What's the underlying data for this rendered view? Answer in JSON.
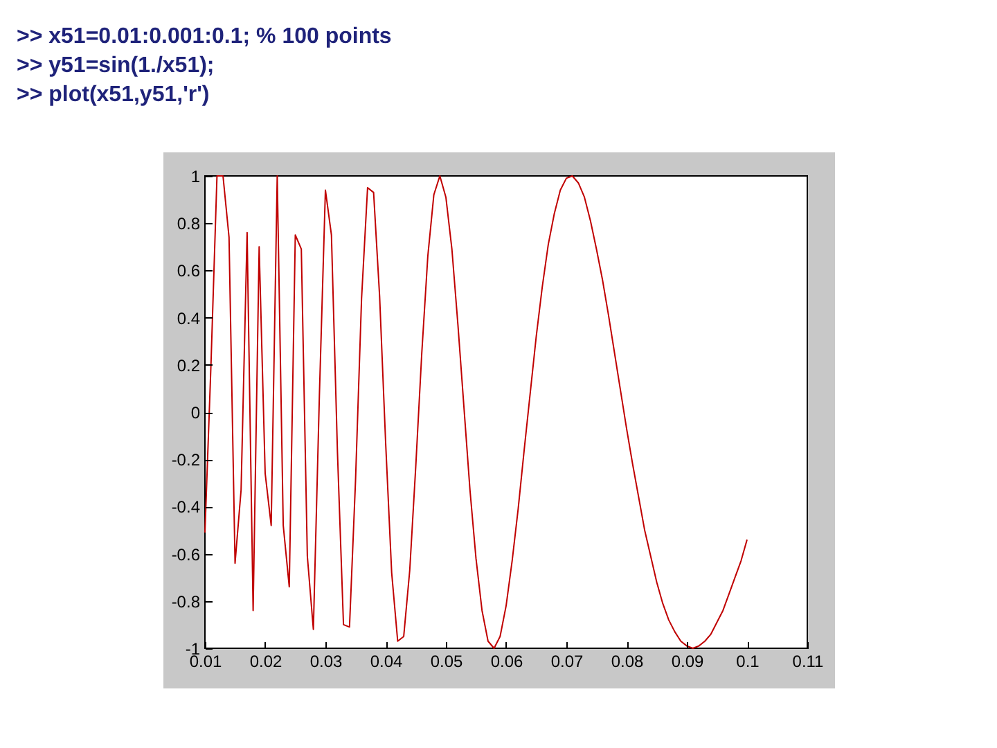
{
  "chart_data": {
    "type": "line",
    "annotations": [
      ">> x51=0.01:0.001:0.1; % 100 points",
      ">> y51=sin(1./x51);",
      ">> plot(x51,y51,'r')"
    ],
    "x": [
      0.01,
      0.011,
      0.012,
      0.013,
      0.014,
      0.015,
      0.016,
      0.017,
      0.018,
      0.019,
      0.02,
      0.021,
      0.022,
      0.023,
      0.024,
      0.025,
      0.026,
      0.027,
      0.028,
      0.029,
      0.03,
      0.031,
      0.032,
      0.033,
      0.034,
      0.035,
      0.036,
      0.037,
      0.038,
      0.039,
      0.04,
      0.041,
      0.042,
      0.043,
      0.044,
      0.045,
      0.046,
      0.047,
      0.048,
      0.049,
      0.05,
      0.051,
      0.052,
      0.053,
      0.054,
      0.055,
      0.056,
      0.057,
      0.058,
      0.059,
      0.06,
      0.061,
      0.062,
      0.063,
      0.064,
      0.065,
      0.066,
      0.067,
      0.068,
      0.069,
      0.07,
      0.071,
      0.072,
      0.073,
      0.074,
      0.075,
      0.076,
      0.077,
      0.078,
      0.079,
      0.08,
      0.081,
      0.082,
      0.083,
      0.084,
      0.085,
      0.086,
      0.087,
      0.088,
      0.089,
      0.09,
      0.091,
      0.092,
      0.093,
      0.094,
      0.095,
      0.096,
      0.097,
      0.098,
      0.099,
      0.1
    ],
    "series": [
      {
        "color": "#c00000",
        "values": [
          -0.51,
          0.2,
          1.0,
          1.0,
          0.74,
          -0.64,
          -0.33,
          0.76,
          -0.84,
          0.7,
          -0.26,
          -0.48,
          1.0,
          -0.48,
          -0.74,
          0.75,
          0.69,
          -0.61,
          -0.92,
          0.07,
          0.94,
          0.75,
          -0.17,
          -0.9,
          -0.91,
          -0.29,
          0.48,
          0.95,
          0.93,
          0.49,
          -0.13,
          -0.68,
          -0.97,
          -0.95,
          -0.67,
          -0.23,
          0.25,
          0.66,
          0.92,
          1.0,
          0.91,
          0.69,
          0.37,
          0.02,
          -0.33,
          -0.62,
          -0.84,
          -0.97,
          -1.0,
          -0.95,
          -0.82,
          -0.63,
          -0.41,
          -0.16,
          0.08,
          0.32,
          0.53,
          0.71,
          0.84,
          0.94,
          0.99,
          1.0,
          0.97,
          0.91,
          0.81,
          0.69,
          0.56,
          0.41,
          0.25,
          0.09,
          -0.07,
          -0.22,
          -0.36,
          -0.5,
          -0.61,
          -0.72,
          -0.81,
          -0.88,
          -0.93,
          -0.97,
          -0.99,
          -1.0,
          -0.99,
          -0.97,
          -0.94,
          -0.89,
          -0.84,
          -0.77,
          -0.7,
          -0.63,
          -0.54
        ]
      }
    ],
    "xlim": [
      0.01,
      0.11
    ],
    "ylim": [
      -1,
      1
    ],
    "xticks": [
      0.01,
      0.02,
      0.03,
      0.04,
      0.05,
      0.06,
      0.07,
      0.08,
      0.09,
      0.1,
      0.11
    ],
    "yticks": [
      -1,
      -0.8,
      -0.6,
      -0.4,
      -0.2,
      0,
      0.2,
      0.4,
      0.6,
      0.8,
      1
    ],
    "line_style": "solid",
    "grid": false
  }
}
